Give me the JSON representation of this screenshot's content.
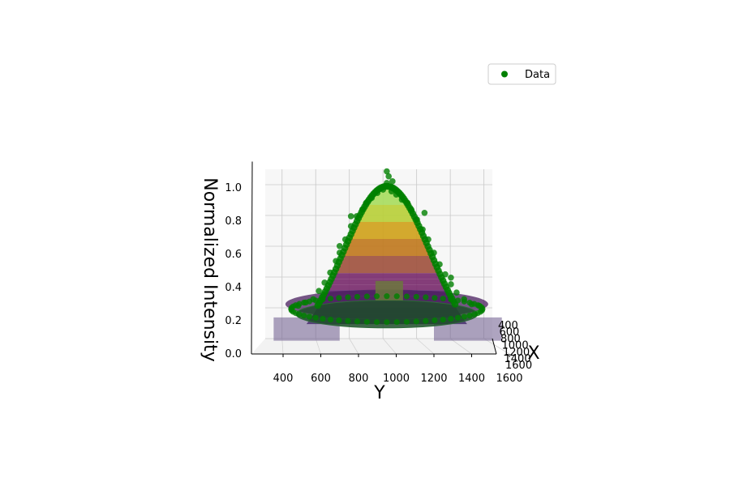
{
  "chart_data": {
    "type": "surface3d",
    "title": "",
    "xlabel": "X",
    "ylabel": "Y",
    "zlabel": "Normalized Intensity",
    "x_ticks": [
      "400",
      "600",
      "800",
      "1000",
      "1200",
      "1400",
      "1600"
    ],
    "y_ticks": [
      "400",
      "600",
      "800",
      "1000",
      "1200",
      "1400",
      "1600"
    ],
    "z_ticks": [
      "0.0",
      "0.2",
      "0.4",
      "0.6",
      "0.8",
      "1.0"
    ],
    "xlim": [
      200,
      1700
    ],
    "ylim": [
      200,
      1650
    ],
    "zlim": [
      0,
      1.1
    ],
    "grid": true,
    "legend": {
      "position": "top-right",
      "entries": [
        {
          "label": "Data",
          "color": "#008000",
          "marker": "circle"
        }
      ]
    },
    "surface": {
      "model": "gaussian",
      "center": 950,
      "sigma": 230,
      "peak": 1.0,
      "colormap": [
        "#2b1055",
        "#5b1e6b",
        "#7a2c6e",
        "#a0523f",
        "#c07a20",
        "#cfa21c",
        "#b9cf3a",
        "#a8dc5f"
      ]
    },
    "scatter": {
      "name": "Data",
      "color": "#008000",
      "points": [
        {
          "y": 950,
          "z": 1.02
        },
        {
          "y": 930,
          "z": 0.98
        },
        {
          "y": 975,
          "z": 0.97
        },
        {
          "y": 900,
          "z": 0.96
        },
        {
          "y": 1000,
          "z": 0.95
        },
        {
          "y": 870,
          "z": 0.93
        },
        {
          "y": 1030,
          "z": 0.92
        },
        {
          "y": 840,
          "z": 0.9
        },
        {
          "y": 1060,
          "z": 0.9
        },
        {
          "y": 820,
          "z": 0.86
        },
        {
          "y": 1080,
          "z": 0.86
        },
        {
          "y": 790,
          "z": 0.82
        },
        {
          "y": 1110,
          "z": 0.8
        },
        {
          "y": 760,
          "z": 0.76
        },
        {
          "y": 1140,
          "z": 0.74
        },
        {
          "y": 730,
          "z": 0.68
        },
        {
          "y": 1170,
          "z": 0.68
        },
        {
          "y": 700,
          "z": 0.6
        },
        {
          "y": 1200,
          "z": 0.6
        },
        {
          "y": 680,
          "z": 0.55
        },
        {
          "y": 1230,
          "z": 0.53
        },
        {
          "y": 650,
          "z": 0.48
        },
        {
          "y": 1260,
          "z": 0.47
        },
        {
          "y": 620,
          "z": 0.42
        },
        {
          "y": 1290,
          "z": 0.41
        },
        {
          "y": 590,
          "z": 0.37
        },
        {
          "y": 1320,
          "z": 0.36
        },
        {
          "y": 560,
          "z": 0.32
        },
        {
          "y": 1360,
          "z": 0.32
        },
        {
          "y": 520,
          "z": 0.3
        },
        {
          "y": 1400,
          "z": 0.29
        },
        {
          "y": 480,
          "z": 0.28
        },
        {
          "y": 1440,
          "z": 0.28
        },
        {
          "y": 950,
          "z": 1.09
        },
        {
          "y": 960,
          "z": 1.06
        },
        {
          "y": 980,
          "z": 1.03
        },
        {
          "y": 760,
          "z": 0.82
        },
        {
          "y": 1150,
          "z": 0.84
        },
        {
          "y": 700,
          "z": 0.64
        },
        {
          "y": 1290,
          "z": 0.45
        }
      ]
    }
  }
}
